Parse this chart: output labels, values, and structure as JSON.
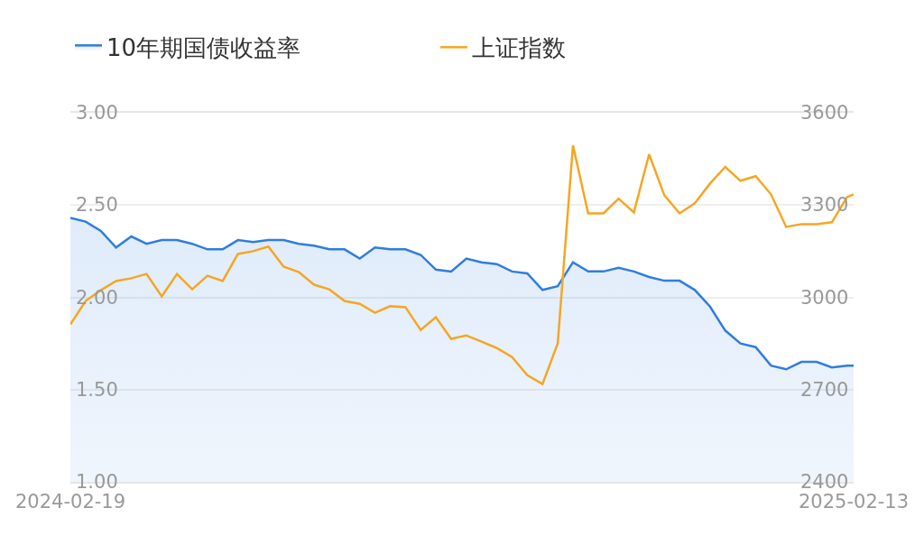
{
  "chart_data": {
    "type": "line",
    "x": [
      "2024-02-19",
      "2024-02-26",
      "2024-03-04",
      "2024-03-11",
      "2024-03-18",
      "2024-03-25",
      "2024-04-01",
      "2024-04-08",
      "2024-04-15",
      "2024-04-22",
      "2024-04-29",
      "2024-05-06",
      "2024-05-13",
      "2024-05-20",
      "2024-05-27",
      "2024-06-03",
      "2024-06-10",
      "2024-06-17",
      "2024-06-24",
      "2024-07-01",
      "2024-07-08",
      "2024-07-15",
      "2024-07-22",
      "2024-07-29",
      "2024-08-05",
      "2024-08-12",
      "2024-08-19",
      "2024-08-26",
      "2024-09-02",
      "2024-09-09",
      "2024-09-16",
      "2024-09-23",
      "2024-09-30",
      "2024-10-07",
      "2024-10-14",
      "2024-10-21",
      "2024-10-28",
      "2024-11-04",
      "2024-11-11",
      "2024-11-18",
      "2024-11-25",
      "2024-12-02",
      "2024-12-09",
      "2024-12-16",
      "2024-12-23",
      "2024-12-30",
      "2025-01-06",
      "2025-01-13",
      "2025-01-20",
      "2025-01-27",
      "2025-02-03",
      "2025-02-10",
      "2025-02-13"
    ],
    "series": [
      {
        "name": "10年期国债收益率",
        "type": "area",
        "color": "#2f7de1",
        "values": [
          2.43,
          2.41,
          2.36,
          2.27,
          2.33,
          2.29,
          2.31,
          2.31,
          2.29,
          2.26,
          2.26,
          2.31,
          2.3,
          2.31,
          2.31,
          2.29,
          2.28,
          2.26,
          2.26,
          2.21,
          2.27,
          2.26,
          2.26,
          2.23,
          2.15,
          2.14,
          2.21,
          2.19,
          2.18,
          2.14,
          2.13,
          2.04,
          2.06,
          2.19,
          2.14,
          2.14,
          2.16,
          2.14,
          2.11,
          2.09,
          2.09,
          2.04,
          1.95,
          1.82,
          1.75,
          1.73,
          1.63,
          1.61,
          1.65,
          1.65,
          1.62,
          1.63,
          1.63
        ]
      },
      {
        "name": "上证指数",
        "axis": "y2",
        "color": "#f5a623",
        "values": [
          2912,
          2988,
          3023,
          3053,
          3062,
          3076,
          3003,
          3076,
          3026,
          3070,
          3053,
          3141,
          3150,
          3165,
          3100,
          3082,
          3041,
          3026,
          2988,
          2979,
          2950,
          2971,
          2968,
          2894,
          2935,
          2865,
          2876,
          2856,
          2835,
          2806,
          2747,
          2718,
          2850,
          3494,
          3273,
          3273,
          3321,
          3276,
          3465,
          3332,
          3273,
          3306,
          3370,
          3424,
          3379,
          3394,
          3335,
          3229,
          3238,
          3238,
          3244,
          3326,
          3335
        ]
      }
    ],
    "xlim": [
      "2024-02-19",
      "2025-02-13"
    ],
    "xticks": [
      "2024-02-19",
      "2025-02-13"
    ],
    "ylim": [
      1.0,
      3.0
    ],
    "yticks": [
      {
        "value": 1.0,
        "label": "1.00"
      },
      {
        "value": 1.5,
        "label": "1.50"
      },
      {
        "value": 2.0,
        "label": "2.00"
      },
      {
        "value": 2.5,
        "label": "2.50"
      },
      {
        "value": 3.0,
        "label": "3.00"
      }
    ],
    "y2lim": [
      2400,
      3600
    ],
    "y2ticks": [
      2400,
      2700,
      3000,
      3300,
      3600
    ],
    "grid": "y",
    "legend": "top left"
  }
}
